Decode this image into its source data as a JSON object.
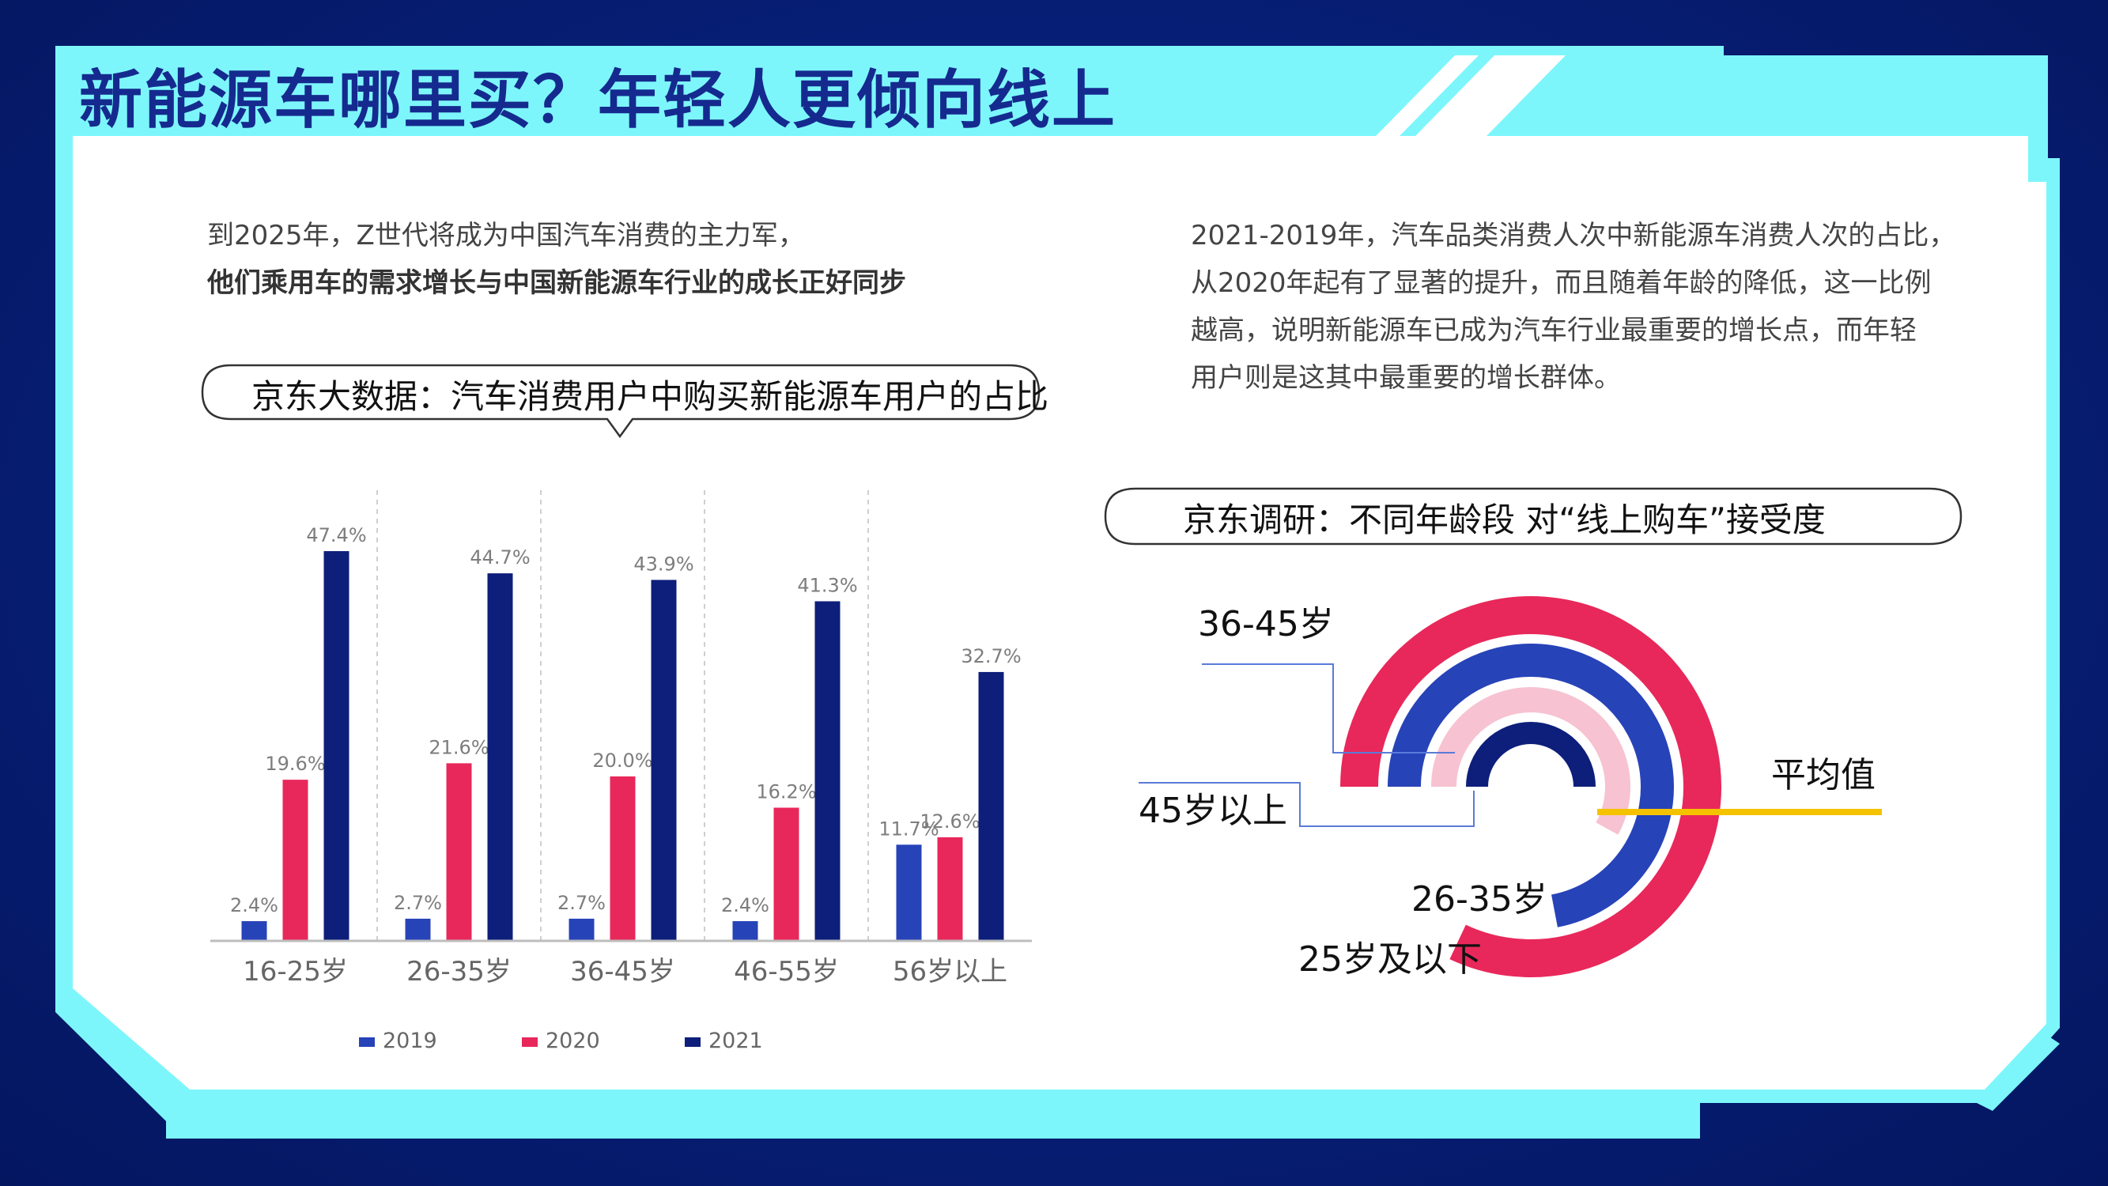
{
  "title": "新能源车哪里买？年轻人更倾向线上",
  "left_text": {
    "line1": "到2025年，Z世代将成为中国汽车消费的主力军，",
    "line2": "他们乘用车的需求增长与中国新能源车行业的成长正好同步"
  },
  "right_text": {
    "line1": "2021-2019年，汽车品类消费人次中新能源车消费人次的占比，",
    "line2": "从2020年起有了显著的提升，而且随着年龄的降低，这一比例",
    "line3": "越高，说明新能源车已成为汽车行业最重要的增长点，而年轻",
    "line4": "用户则是这其中最重要的增长群体。"
  },
  "bar_bubble": "京东大数据：汽车消费用户中购买新能源车用户的占比",
  "radial_bubble": "京东调研：不同年龄段 对“线上购车”接受度",
  "colors": {
    "2019": "#2743b8",
    "2020": "#e8285a",
    "2021": "#0d1f7a",
    "avg": "#f5c200",
    "frame": "#7df6fb"
  },
  "chart_data": [
    {
      "type": "bar",
      "title": "京东大数据：汽车消费用户中购买新能源车用户的占比",
      "categories": [
        "16-25岁",
        "26-35岁",
        "36-45岁",
        "46-55岁",
        "56岁以上"
      ],
      "series": [
        {
          "name": "2019",
          "values": [
            2.4,
            2.7,
            2.7,
            2.4,
            11.7
          ],
          "labels": [
            "2.4%",
            "2.7%",
            "2.7%",
            "2.4%",
            "11.7%"
          ]
        },
        {
          "name": "2020",
          "values": [
            19.6,
            21.6,
            20.0,
            16.2,
            12.6
          ],
          "labels": [
            "19.6%",
            "21.6%",
            "20.0%",
            "16.2%",
            "12.6%"
          ]
        },
        {
          "name": "2021",
          "values": [
            47.4,
            44.7,
            43.9,
            41.3,
            32.7
          ],
          "labels": [
            "47.4%",
            "44.7%",
            "43.9%",
            "41.3%",
            "32.7%"
          ]
        }
      ],
      "ylim": [
        0,
        50
      ],
      "legend": "bottom",
      "grid": false
    },
    {
      "type": "radial_bar",
      "title": "京东调研：不同年龄段 对“线上购车”接受度",
      "categories": [
        "25岁及以下",
        "26-35岁",
        "36-45岁",
        "45岁以上"
      ],
      "values": [
        0.82,
        0.72,
        0.58,
        0.5
      ],
      "colors": [
        "#e8285a",
        "#2743b8",
        "#f7c2d2",
        "#0d1f7a"
      ],
      "reference_label": "平均值",
      "reference_value": 0.62
    }
  ]
}
